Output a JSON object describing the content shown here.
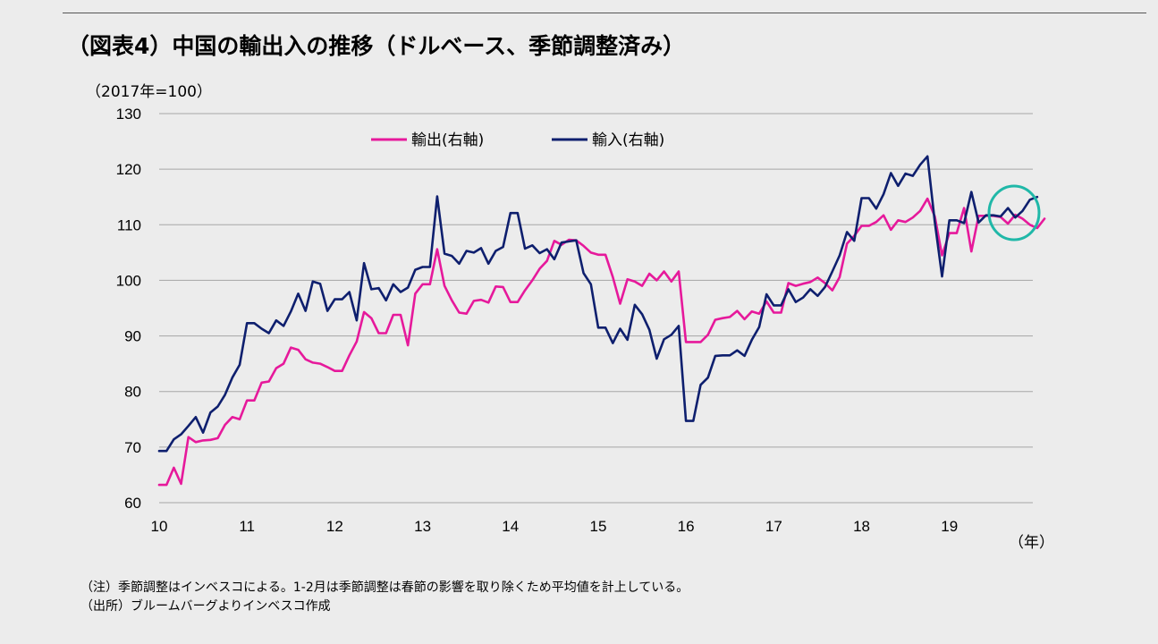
{
  "page": {
    "title": "（図表4）中国の輸出入の推移（ドルベース、季節調整済み）",
    "note": "（注）季節調整はインベスコによる。1-2月は季節調整は春節の影響を取り除くため平均値を計上している。",
    "source": "（出所）ブルームバーグよりインベスコ作成"
  },
  "chart_data": {
    "type": "line",
    "title": "（図表4）中国の輸出入の推移（ドルベース、季節調整済み）",
    "ylabel": "（2017年=100）",
    "xlabel": "（年）",
    "ylim": [
      60,
      130
    ],
    "yticks": [
      60,
      70,
      80,
      90,
      100,
      110,
      120,
      130
    ],
    "x_start": 2010.0,
    "x_end": 2019.95,
    "xticks": [
      {
        "label": "10",
        "value": 2010
      },
      {
        "label": "11",
        "value": 2011
      },
      {
        "label": "12",
        "value": 2012
      },
      {
        "label": "13",
        "value": 2013
      },
      {
        "label": "14",
        "value": 2014
      },
      {
        "label": "15",
        "value": 2015
      },
      {
        "label": "16",
        "value": 2016
      },
      {
        "label": "17",
        "value": 2017
      },
      {
        "label": "18",
        "value": 2018
      },
      {
        "label": "19",
        "value": 2019
      }
    ],
    "grid": "horizontal",
    "legend_position": "top-center",
    "annotation": "circle around late-2019 values",
    "series": [
      {
        "name": "輸出(右軸)",
        "color": "#e6199b",
        "values": [
          63.2,
          63.2,
          66.3,
          63.4,
          71.8,
          70.9,
          71.2,
          71.3,
          71.6,
          74.0,
          75.4,
          75.0,
          78.4,
          78.4,
          81.6,
          81.8,
          84.2,
          85.0,
          87.9,
          87.5,
          85.8,
          85.2,
          85.0,
          84.4,
          83.7,
          83.7,
          86.5,
          89.0,
          94.3,
          93.2,
          90.5,
          90.5,
          93.8,
          93.8,
          88.3,
          97.6,
          99.3,
          99.3,
          105.6,
          99.0,
          96.4,
          94.2,
          94.0,
          96.3,
          96.5,
          96.0,
          98.9,
          98.8,
          96.1,
          96.1,
          98.2,
          100.0,
          102.1,
          103.5,
          107.1,
          106.4,
          107.3,
          107.2,
          106.2,
          105.0,
          104.6,
          104.6,
          100.6,
          95.8,
          100.2,
          99.8,
          99.0,
          101.2,
          100.0,
          101.6,
          99.8,
          101.6,
          88.9,
          88.9,
          88.9,
          90.2,
          92.9,
          93.2,
          93.4,
          94.5,
          93.0,
          94.4,
          94.0,
          96.2,
          94.2,
          94.2,
          99.5,
          99.0,
          99.4,
          99.7,
          100.5,
          99.5,
          98.2,
          100.6,
          106.6,
          108.0,
          109.8,
          109.8,
          110.5,
          111.7,
          109.1,
          110.8,
          110.5,
          111.3,
          112.5,
          114.7,
          111.5,
          104.5,
          108.5,
          108.5,
          113.0,
          105.2,
          111.6,
          111.6,
          111.6,
          111.4,
          110.2,
          111.8,
          111.1,
          110.0,
          109.4,
          111.1
        ]
      },
      {
        "name": "輸入(右軸)",
        "color": "#0e1f6e",
        "values": [
          69.3,
          69.3,
          71.4,
          72.3,
          73.8,
          75.4,
          72.6,
          76.2,
          77.3,
          79.4,
          82.5,
          84.8,
          92.3,
          92.3,
          91.3,
          90.5,
          92.8,
          91.8,
          94.4,
          97.6,
          94.5,
          99.8,
          99.4,
          94.5,
          96.6,
          96.6,
          97.9,
          92.8,
          103.1,
          98.4,
          98.6,
          96.4,
          99.3,
          97.9,
          98.7,
          101.9,
          102.4,
          102.4,
          115.1,
          104.8,
          104.4,
          103.0,
          105.3,
          105.0,
          105.8,
          103.0,
          105.3,
          106.0,
          112.1,
          112.1,
          105.7,
          106.3,
          104.9,
          105.6,
          103.8,
          106.8,
          107.0,
          107.2,
          101.3,
          99.3,
          91.5,
          91.5,
          88.7,
          91.3,
          89.3,
          95.6,
          93.9,
          91.1,
          85.9,
          89.4,
          90.2,
          91.8,
          74.7,
          74.7,
          81.2,
          82.5,
          86.4,
          86.5,
          86.5,
          87.4,
          86.4,
          89.3,
          91.6,
          97.5,
          95.5,
          95.5,
          98.4,
          96.1,
          96.9,
          98.4,
          97.2,
          98.8,
          101.6,
          104.5,
          108.7,
          107.1,
          114.8,
          114.8,
          112.9,
          115.5,
          119.3,
          117.0,
          119.2,
          118.8,
          120.8,
          122.3,
          110.5,
          100.7,
          110.8,
          110.8,
          110.3,
          115.9,
          110.4,
          111.7,
          111.7,
          111.5,
          113.0,
          111.3,
          112.5,
          114.5,
          115.0
        ]
      }
    ]
  }
}
